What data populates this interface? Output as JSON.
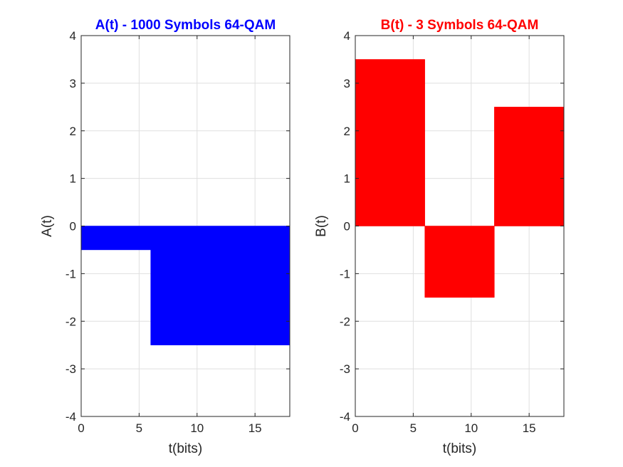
{
  "chart_data": [
    {
      "type": "area",
      "title": "A(t) - 1000 Symbols 64-QAM",
      "title_color": "#0000ff",
      "xlabel": "t(bits)",
      "ylabel": "A(t)",
      "xlim": [
        0,
        18
      ],
      "ylim": [
        -4,
        4
      ],
      "x_ticks": [
        0,
        5,
        10,
        15
      ],
      "y_ticks": [
        -4,
        -3,
        -2,
        -1,
        0,
        1,
        2,
        3,
        4
      ],
      "grid": true,
      "fill_color": "#0000ff",
      "series": [
        {
          "x": [
            0,
            6,
            6,
            18
          ],
          "y": [
            -0.5,
            -0.5,
            -2.5,
            -2.5
          ]
        }
      ]
    },
    {
      "type": "area",
      "title": "B(t) - 3 Symbols 64-QAM",
      "title_color": "#ff0000",
      "xlabel": "t(bits)",
      "ylabel": "B(t)",
      "xlim": [
        0,
        18
      ],
      "ylim": [
        -4,
        4
      ],
      "x_ticks": [
        0,
        5,
        10,
        15
      ],
      "y_ticks": [
        -4,
        -3,
        -2,
        -1,
        0,
        1,
        2,
        3,
        4
      ],
      "grid": true,
      "fill_color": "#ff0000",
      "series": [
        {
          "x": [
            0,
            6,
            6,
            12,
            12,
            18
          ],
          "y": [
            3.5,
            3.5,
            -1.5,
            -1.5,
            2.5,
            2.5
          ]
        }
      ]
    }
  ]
}
